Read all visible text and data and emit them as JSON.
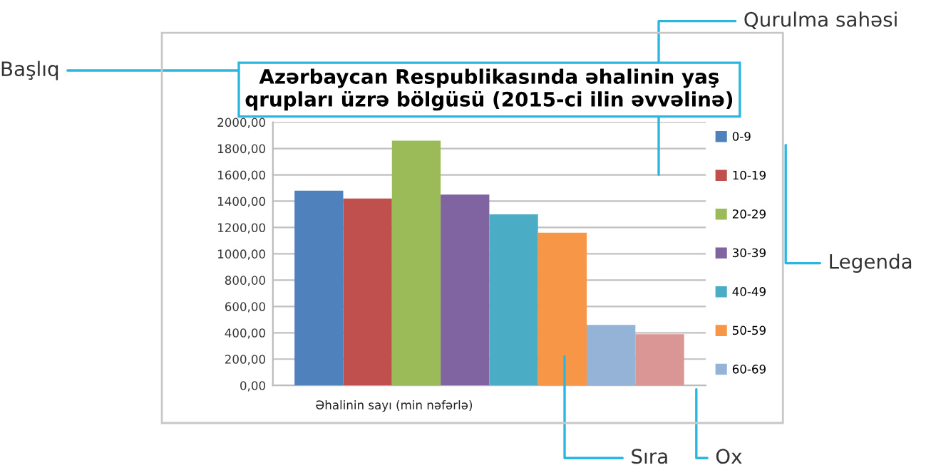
{
  "chart_data": {
    "type": "bar",
    "title": "Azərbaycan Respublikasında əhalinin yaş\nqrupları üzrə bölgüsü (2015-ci ilin əvvəlinə)",
    "xlabel": "Əhalinin sayı (min nəfərlə)",
    "categories": [
      null
    ],
    "series": [
      {
        "name": "0-9",
        "color": "#4f81bd",
        "values": [
          1480
        ]
      },
      {
        "name": "10-19",
        "color": "#c0504d",
        "values": [
          1420
        ]
      },
      {
        "name": "20-29",
        "color": "#9bbb59",
        "values": [
          1860
        ]
      },
      {
        "name": "30-39",
        "color": "#8064a2",
        "values": [
          1450
        ]
      },
      {
        "name": "40-49",
        "color": "#4bacc6",
        "values": [
          1300
        ]
      },
      {
        "name": "50-59",
        "color": "#f79646",
        "values": [
          1160
        ]
      },
      {
        "name": "60-69",
        "color": "#95b3d7",
        "values": [
          460
        ]
      },
      {
        "color": "#d99694",
        "values": [
          390
        ]
      }
    ],
    "ylim": [
      0,
      2000
    ],
    "yticks": [
      {
        "value": 0,
        "label": "0,00"
      },
      {
        "value": 200,
        "label": "200,00"
      },
      {
        "value": 400,
        "label": "400,00"
      },
      {
        "value": 600,
        "label": "600,00"
      },
      {
        "value": 800,
        "label": "800,00"
      },
      {
        "value": 1000,
        "label": "1000,00"
      },
      {
        "value": 1200,
        "label": "1200,00"
      },
      {
        "value": 1400,
        "label": "1400,00"
      },
      {
        "value": 1600,
        "label": "1600,00"
      },
      {
        "value": 1800,
        "label": "1800,00"
      },
      {
        "value": 2000,
        "label": "2000,00"
      }
    ],
    "grid": "y",
    "legend": "right",
    "annotations": [
      "Başlıq",
      "Qurulma sahəsi",
      "Legenda",
      "Sıra",
      "Ox"
    ]
  }
}
